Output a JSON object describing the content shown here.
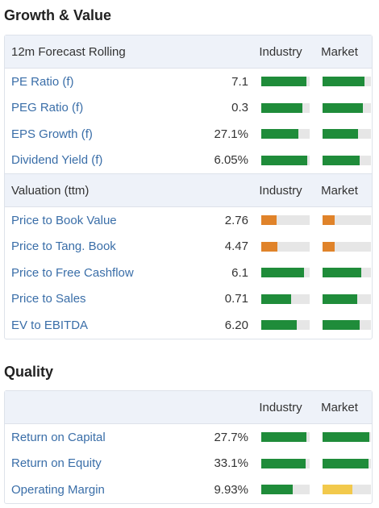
{
  "sections": {
    "growth_title": "Growth & Value",
    "quality_title": "Quality"
  },
  "colors": {
    "good": "#1f8c3a",
    "bad": "#e0832a",
    "neutral": "#f2c94c",
    "track": "#e6e6e6",
    "header_bg": "#eef2f9",
    "link": "#3a6ea8"
  },
  "headers": {
    "forecast": "12m Forecast Rolling",
    "valuation": "Valuation (ttm)",
    "quality": "",
    "industry": "Industry",
    "market": "Market"
  },
  "forecast_rows": [
    {
      "label": "PE Ratio (f)",
      "value": "7.1",
      "industry": 0.93,
      "market": 0.87,
      "industry_color": "good",
      "market_color": "good"
    },
    {
      "label": "PEG Ratio (f)",
      "value": "0.3",
      "industry": 0.85,
      "market": 0.83,
      "industry_color": "good",
      "market_color": "good"
    },
    {
      "label": "EPS Growth (f)",
      "value": "27.1%",
      "industry": 0.77,
      "market": 0.73,
      "industry_color": "good",
      "market_color": "good"
    },
    {
      "label": "Dividend Yield (f)",
      "value": "6.05%",
      "industry": 0.95,
      "market": 0.77,
      "industry_color": "good",
      "market_color": "good"
    }
  ],
  "valuation_rows": [
    {
      "label": "Price to Book Value",
      "value": "2.76",
      "industry": 0.32,
      "market": 0.25,
      "industry_color": "bad",
      "market_color": "bad"
    },
    {
      "label": "Price to Tang. Book",
      "value": "4.47",
      "industry": 0.33,
      "market": 0.25,
      "industry_color": "bad",
      "market_color": "bad"
    },
    {
      "label": "Price to Free Cashflow",
      "value": "6.1",
      "industry": 0.88,
      "market": 0.8,
      "industry_color": "good",
      "market_color": "good"
    },
    {
      "label": "Price to Sales",
      "value": "0.71",
      "industry": 0.62,
      "market": 0.72,
      "industry_color": "good",
      "market_color": "good"
    },
    {
      "label": "EV to EBITDA",
      "value": "6.20",
      "industry": 0.73,
      "market": 0.77,
      "industry_color": "good",
      "market_color": "good"
    }
  ],
  "quality_rows": [
    {
      "label": "Return on Capital",
      "value": "27.7%",
      "industry": 0.93,
      "market": 0.97,
      "industry_color": "good",
      "market_color": "good"
    },
    {
      "label": "Return on Equity",
      "value": "33.1%",
      "industry": 0.92,
      "market": 0.95,
      "industry_color": "good",
      "market_color": "good"
    },
    {
      "label": "Operating Margin",
      "value": "9.93%",
      "industry": 0.65,
      "market": 0.62,
      "industry_color": "good",
      "market_color": "neutral"
    }
  ]
}
